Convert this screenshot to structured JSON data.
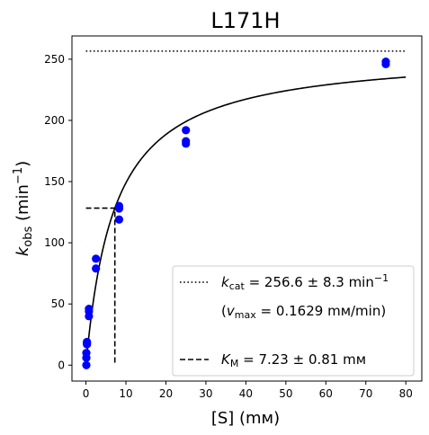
{
  "chart_data": {
    "type": "scatter",
    "title": "L171H",
    "xlabel": "[S] (mм)",
    "ylabel": {
      "base": "k",
      "sub": "obs",
      "unit": "(min",
      "sup": "−1",
      "close": ")"
    },
    "xlim": [
      -3.5,
      84
    ],
    "ylim": [
      -13,
      269
    ],
    "xticks": [
      0,
      10,
      20,
      30,
      40,
      50,
      60,
      70,
      80
    ],
    "yticks": [
      0,
      50,
      100,
      150,
      200,
      250
    ],
    "grid": false,
    "legend_position": "lower-right",
    "points": {
      "color": "#0000ff",
      "x": [
        0.1,
        0.1,
        0.1,
        0.25,
        0.25,
        0.25,
        0.75,
        0.75,
        0.75,
        2.5,
        2.5,
        8.3,
        8.3,
        8.3,
        25,
        25,
        25,
        75,
        75
      ],
      "y": [
        0,
        6,
        10,
        17,
        18,
        19,
        40,
        44,
        46,
        79,
        87,
        119,
        128,
        130,
        181,
        183,
        192,
        246,
        248
      ]
    },
    "fit": {
      "kcat": 256.6,
      "KM": 7.23,
      "x_range": [
        0,
        80
      ],
      "color": "#000000"
    },
    "kcat_line": {
      "y": 256.6,
      "x_range": [
        0,
        80
      ],
      "style": "dotted"
    },
    "km_marker": {
      "x": 7.23,
      "y": 128.3,
      "style": "dashed"
    },
    "legend": [
      {
        "style": "dotted",
        "sym": "k",
        "sub": "cat",
        "text": " = 256.6 ± 8.3 min",
        "sup": "−1"
      },
      {
        "style": "none",
        "prefix": "(",
        "sym": "v",
        "sub": "max",
        "text": " = 0.1629 mм/min)"
      },
      {
        "style": "dashed",
        "sym": "K",
        "sub": "M",
        "text": " = 7.23 ± 0.81 mм"
      }
    ]
  }
}
